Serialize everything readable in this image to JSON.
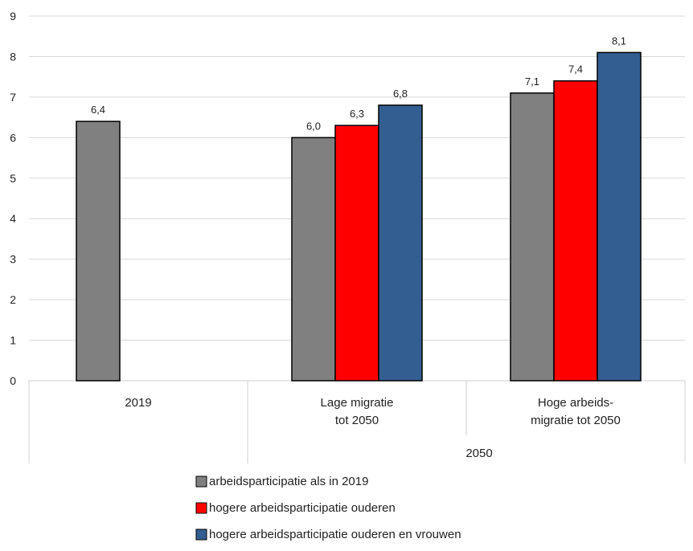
{
  "chart_data": {
    "type": "bar",
    "ylim": [
      0,
      9
    ],
    "yticks": [
      "0",
      "1",
      "2",
      "3",
      "4",
      "5",
      "6",
      "7",
      "8",
      "9"
    ],
    "grid": true,
    "legend_position": "bottom",
    "groups": [
      {
        "label_lines": [
          "2019"
        ],
        "bars": [
          {
            "series": "arbeidsparticipatie als in 2019",
            "value": 6.4,
            "label": "6,4"
          }
        ]
      },
      {
        "label_lines": [
          "Lage migratie",
          "tot 2050"
        ],
        "bars": [
          {
            "series": "arbeidsparticipatie als in 2019",
            "value": 6.0,
            "label": "6,0"
          },
          {
            "series": "hogere arbeidsparticipatie ouderen",
            "value": 6.3,
            "label": "6,3"
          },
          {
            "series": "hogere arbeidsparticipatie ouderen en vrouwen",
            "value": 6.8,
            "label": "6,8"
          }
        ]
      },
      {
        "label_lines": [
          "Hoge arbeids-",
          "migratie tot 2050"
        ],
        "bars": [
          {
            "series": "arbeidsparticipatie als in 2019",
            "value": 7.1,
            "label": "7,1"
          },
          {
            "series": "hogere arbeidsparticipatie ouderen",
            "value": 7.4,
            "label": "7,4"
          },
          {
            "series": "hogere arbeidsparticipatie ouderen en vrouwen",
            "value": 8.1,
            "label": "8,1"
          }
        ]
      }
    ],
    "outer_category": "2050",
    "series": [
      {
        "name": "arbeidsparticipatie als in 2019",
        "color": "#808080"
      },
      {
        "name": "hogere arbeidsparticipatie ouderen",
        "color": "#ff0000"
      },
      {
        "name": "hogere arbeidsparticipatie ouderen en vrouwen",
        "color": "#335e91"
      }
    ]
  }
}
